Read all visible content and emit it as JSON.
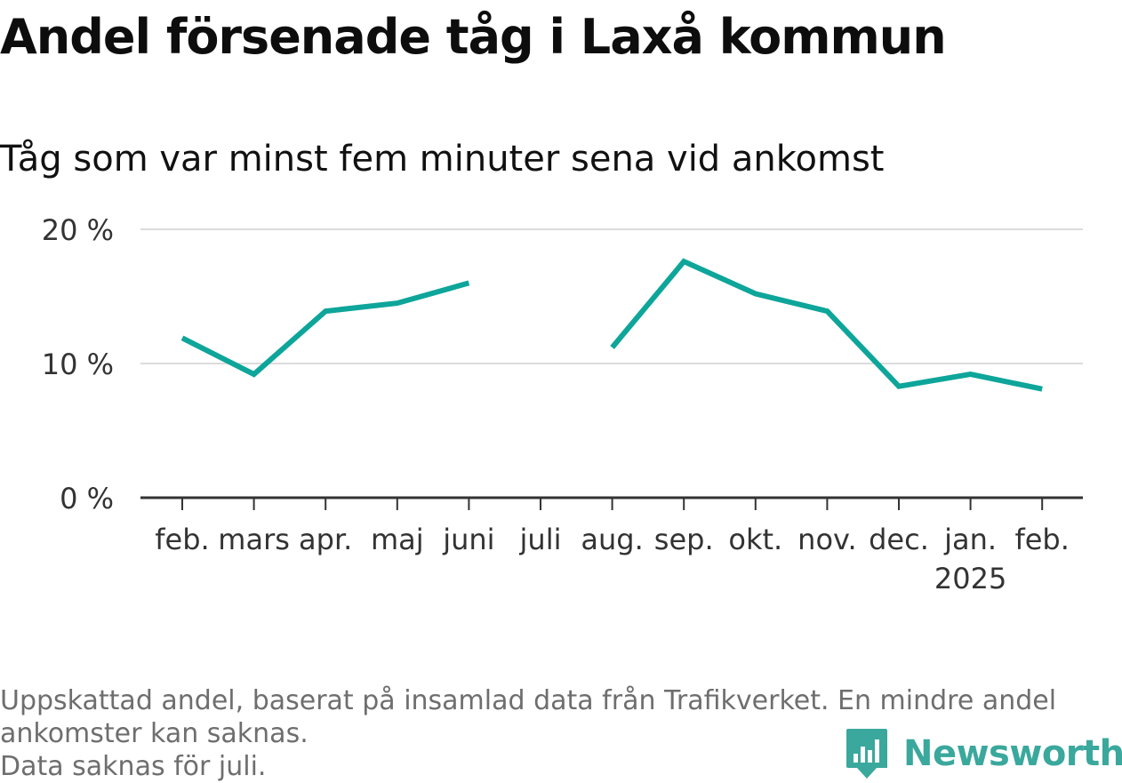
{
  "title": "Andel försenade tåg i Laxå kommun",
  "subtitle": "Tåg som var minst fem minuter sena vid ankomst",
  "footnote": {
    "line1": "Uppskattad andel, baserat på insamlad data från Trafikverket. En mindre andel",
    "line2": "ankomster kan saknas.",
    "line3": "Data saknas för juli."
  },
  "logo": {
    "text": "Newsworthy",
    "icon": "bar-chart-badge-icon",
    "color": "#3aa89c"
  },
  "chart_data": {
    "type": "line",
    "title": "Andel försenade tåg i Laxå kommun",
    "subtitle": "Tåg som var minst fem minuter sena vid ankomst",
    "categories": [
      "feb.",
      "mars",
      "apr.",
      "maj",
      "juni",
      "juli",
      "aug.",
      "sep.",
      "okt.",
      "nov.",
      "dec.",
      "jan.",
      "feb."
    ],
    "year_label": {
      "category_index": 11,
      "text": "2025"
    },
    "series": [
      {
        "values": [
          11.9,
          9.2,
          13.9,
          14.5,
          16.0,
          null,
          11.2,
          17.6,
          15.2,
          13.9,
          8.3,
          9.2,
          8.1
        ],
        "color": "#0ea59a"
      }
    ],
    "ylim": [
      0,
      20
    ],
    "yticks": [
      {
        "value": 0,
        "label": "0 %"
      },
      {
        "value": 10,
        "label": "10 %"
      },
      {
        "value": 20,
        "label": "20 %"
      }
    ],
    "grid": true,
    "unit": "%"
  }
}
